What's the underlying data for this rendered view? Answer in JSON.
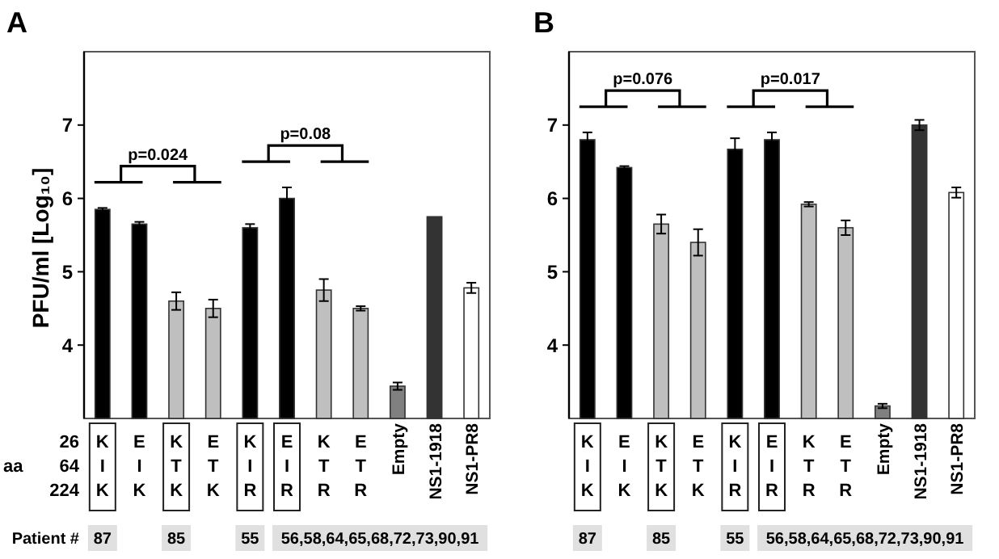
{
  "chart_data": [
    {
      "type": "bar",
      "title": "A",
      "ylabel": "PFU/ml [Log₁₀]",
      "categories": [
        "K I K",
        "E I K",
        "K T K",
        "E T K",
        "K I R",
        "E I R",
        "K T R",
        "E T R",
        "Empty",
        "NS1-1918",
        "NS1-PR8"
      ],
      "values": [
        5.85,
        5.65,
        4.6,
        4.5,
        5.6,
        6.0,
        4.75,
        4.5,
        3.44,
        5.75,
        4.78
      ],
      "errors": [
        0.02,
        0.03,
        0.12,
        0.12,
        0.05,
        0.15,
        0.15,
        0.03,
        0.05,
        null,
        0.07
      ],
      "colors": [
        "#000000",
        "#000000",
        "#bfbfbf",
        "#bfbfbf",
        "#000000",
        "#000000",
        "#bfbfbf",
        "#bfbfbf",
        "#808080",
        "#333333",
        "#ffffff"
      ],
      "ylim": [
        3,
        8
      ],
      "yticks": [
        4,
        5,
        6,
        7
      ],
      "grid": false,
      "annotations": [
        "p=0.024",
        "p=0.08",
        "aa",
        "26",
        "64",
        "224",
        "Patient #",
        "87",
        "85",
        "55",
        "56,58,64,65,68,72,73,90,91"
      ]
    },
    {
      "type": "bar",
      "title": "B",
      "categories": [
        "K I K",
        "E I K",
        "K T K",
        "E T K",
        "K I R",
        "E I R",
        "K T R",
        "E T R",
        "Empty",
        "NS1-1918",
        "NS1-PR8"
      ],
      "values": [
        6.8,
        6.42,
        5.65,
        5.4,
        6.67,
        6.8,
        5.92,
        5.6,
        3.17,
        7.0,
        6.08
      ],
      "errors": [
        0.1,
        0.02,
        0.13,
        0.18,
        0.15,
        0.1,
        0.03,
        0.1,
        0.03,
        0.07,
        0.07
      ],
      "colors": [
        "#000000",
        "#000000",
        "#bfbfbf",
        "#bfbfbf",
        "#000000",
        "#000000",
        "#bfbfbf",
        "#bfbfbf",
        "#808080",
        "#333333",
        "#ffffff"
      ],
      "ylim": [
        3,
        8
      ],
      "yticks": [
        4,
        5,
        6,
        7
      ],
      "grid": false,
      "annotations": [
        "p=0.076",
        "p=0.017",
        "87",
        "85",
        "55",
        "56,58,64,65,68,72,73,90,91"
      ]
    }
  ]
}
